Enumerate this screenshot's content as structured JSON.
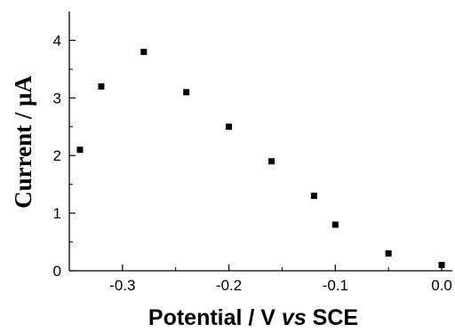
{
  "chart_data": {
    "type": "scatter",
    "xlabel": "Potential / V vs SCE",
    "xlabel_parts": {
      "main": "Potential / V ",
      "italic": "vs",
      "suffix": " SCE"
    },
    "ylabel": "Current / μA",
    "xlim": [
      -0.35,
      0.01
    ],
    "ylim": [
      0,
      4.5
    ],
    "x_ticks": [
      -0.3,
      -0.2,
      -0.1,
      0.0
    ],
    "x_tick_labels": [
      "-0.3",
      "-0.2",
      "-0.1",
      "0.0"
    ],
    "y_ticks": [
      0,
      1,
      2,
      3,
      4
    ],
    "y_tick_labels": [
      "0",
      "1",
      "2",
      "3",
      "4"
    ],
    "marker": "square",
    "marker_color": "#000000",
    "grid": false,
    "series": [
      {
        "points": [
          {
            "x": -0.34,
            "y": 2.1
          },
          {
            "x": -0.32,
            "y": 3.2
          },
          {
            "x": -0.28,
            "y": 3.8
          },
          {
            "x": -0.24,
            "y": 3.1
          },
          {
            "x": -0.2,
            "y": 2.5
          },
          {
            "x": -0.16,
            "y": 1.9
          },
          {
            "x": -0.12,
            "y": 1.3
          },
          {
            "x": -0.1,
            "y": 0.8
          },
          {
            "x": -0.05,
            "y": 0.3
          },
          {
            "x": 0.0,
            "y": 0.1
          }
        ]
      }
    ]
  }
}
